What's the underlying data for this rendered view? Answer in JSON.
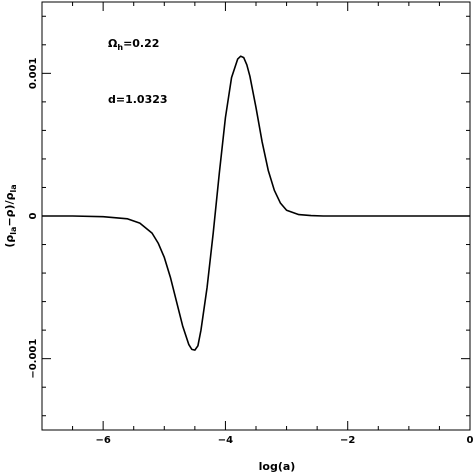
{
  "chart_data": {
    "type": "line",
    "title": "",
    "xlabel": "log(a)",
    "ylabel_parts": {
      "open": "(ρ",
      "sub1": "la",
      "mid": "−ρ)/ρ",
      "sub2": "la"
    },
    "xlim": [
      -7,
      0
    ],
    "ylim": [
      -0.0015,
      0.0015
    ],
    "x_ticks": [
      {
        "value": -6,
        "label": "−6"
      },
      {
        "value": -4,
        "label": "−4"
      },
      {
        "value": -2,
        "label": "−2"
      },
      {
        "value": 0,
        "label": "0"
      }
    ],
    "y_ticks": [
      {
        "value": -0.001,
        "label": "−0.001"
      },
      {
        "value": 0,
        "label": "0"
      },
      {
        "value": 0.001,
        "label": "0.001"
      }
    ],
    "grid": false,
    "annotations": [
      {
        "id": "omega",
        "symbol": "Ω",
        "sub": "h",
        "text": "=0.22"
      },
      {
        "id": "d",
        "text": "d=1.0323"
      }
    ],
    "series": [
      {
        "color": "#000000",
        "x": [
          -7.0,
          -6.5,
          -6.0,
          -5.6,
          -5.4,
          -5.2,
          -5.1,
          -5.0,
          -4.9,
          -4.8,
          -4.7,
          -4.6,
          -4.55,
          -4.5,
          -4.45,
          -4.4,
          -4.3,
          -4.2,
          -4.1,
          -4.0,
          -3.9,
          -3.8,
          -3.75,
          -3.7,
          -3.65,
          -3.6,
          -3.5,
          -3.4,
          -3.3,
          -3.2,
          -3.1,
          -3.0,
          -2.8,
          -2.6,
          -2.4,
          -2.0,
          -1.0,
          0.0
        ],
        "y": [
          0.0,
          0.0,
          -5e-06,
          -2e-05,
          -5e-05,
          -0.00012,
          -0.00019,
          -0.00029,
          -0.00043,
          -0.0006,
          -0.00077,
          -0.0009,
          -0.000935,
          -0.00094,
          -0.00091,
          -0.0008,
          -0.0005,
          -0.00012,
          0.0003,
          0.00069,
          0.00097,
          0.0011,
          0.00112,
          0.00111,
          0.00106,
          0.00098,
          0.00076,
          0.00052,
          0.00032,
          0.00018,
          9e-05,
          4e-05,
          1e-05,
          3e-06,
          0.0,
          0.0,
          0.0,
          0.0
        ]
      }
    ]
  }
}
